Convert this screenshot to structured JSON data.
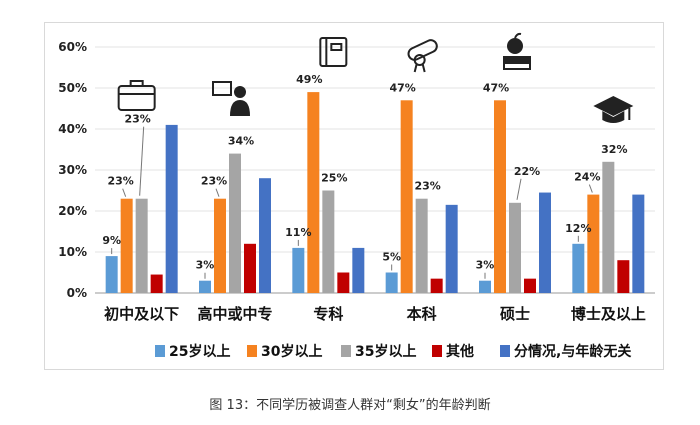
{
  "caption": "图 13：不同学历被调查人群对“剩女”的年龄判断",
  "chart_data": {
    "type": "bar",
    "title": "",
    "xlabel": "",
    "ylabel": "",
    "ylim": [
      0,
      60
    ],
    "yticks": [
      "0%",
      "10%",
      "20%",
      "30%",
      "40%",
      "50%",
      "60%"
    ],
    "grid": true,
    "legend_position": "bottom",
    "categories": [
      "初中及以下",
      "高中或中专",
      "专科",
      "本科",
      "硕士",
      "博士及以上"
    ],
    "category_icons": [
      "briefcase-icon",
      "teacher-icon",
      "book-icon",
      "diploma-icon",
      "books-apple-icon",
      "graduation-cap-icon"
    ],
    "series": [
      {
        "name": "25岁以上",
        "color": "#5b9bd5",
        "values": [
          9,
          3,
          11,
          5,
          3,
          12
        ]
      },
      {
        "name": "30岁以上",
        "color": "#f58220",
        "values": [
          23,
          23,
          49,
          47,
          47,
          24
        ]
      },
      {
        "name": "35岁以上",
        "color": "#a5a5a5",
        "values": [
          23,
          34,
          25,
          23,
          22,
          32
        ]
      },
      {
        "name": "其他",
        "color": "#c00000",
        "values": [
          4.5,
          12,
          5,
          3.5,
          3.5,
          8
        ]
      },
      {
        "name": "分情况,与年龄无关",
        "color": "#4472c4",
        "values": [
          41,
          28,
          11,
          21.5,
          24.5,
          24
        ]
      }
    ],
    "data_labels": [
      {
        "category": 0,
        "series": 0,
        "text": "9%"
      },
      {
        "category": 0,
        "series": 1,
        "text": "23%"
      },
      {
        "category": 0,
        "series": 2,
        "text": "23%"
      },
      {
        "category": 1,
        "series": 0,
        "text": "3%"
      },
      {
        "category": 1,
        "series": 1,
        "text": "23%"
      },
      {
        "category": 1,
        "series": 2,
        "text": "34%"
      },
      {
        "category": 2,
        "series": 0,
        "text": "11%"
      },
      {
        "category": 2,
        "series": 1,
        "text": "49%"
      },
      {
        "category": 2,
        "series": 2,
        "text": "25%"
      },
      {
        "category": 3,
        "series": 0,
        "text": "5%"
      },
      {
        "category": 3,
        "series": 1,
        "text": "47%"
      },
      {
        "category": 3,
        "series": 2,
        "text": "23%"
      },
      {
        "category": 4,
        "series": 0,
        "text": "3%"
      },
      {
        "category": 4,
        "series": 1,
        "text": "47%"
      },
      {
        "category": 4,
        "series": 2,
        "text": "22%"
      },
      {
        "category": 5,
        "series": 0,
        "text": "12%"
      },
      {
        "category": 5,
        "series": 1,
        "text": "24%"
      },
      {
        "category": 5,
        "series": 2,
        "text": "32%"
      }
    ]
  }
}
